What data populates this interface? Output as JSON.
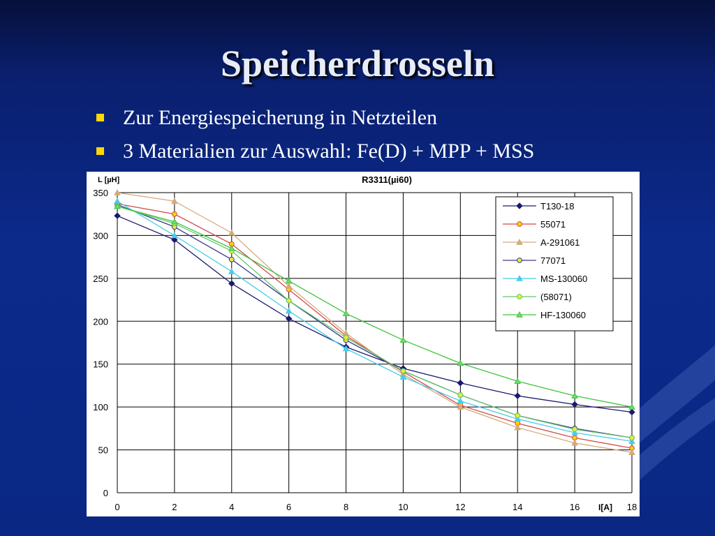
{
  "slide": {
    "title": "Speicherdrosseln",
    "bullets": [
      "Zur Energiespeicherung in Netzteilen",
      "3 Materialien zur Auswahl: Fe(D) + MPP + MSS"
    ]
  },
  "colors": {
    "background": "#0b2a8a",
    "bullet_marker": "#ffd800",
    "title_text": "#e8ecf7"
  },
  "chart_data": {
    "type": "line",
    "title": "R3311(µi60)",
    "xlabel": "I[A]",
    "ylabel": "L [µH]",
    "x": [
      0,
      2,
      4,
      6,
      8,
      10,
      12,
      14,
      16,
      18
    ],
    "xlim": [
      0,
      18
    ],
    "ylim": [
      0,
      350
    ],
    "xticks": [
      0,
      2,
      4,
      6,
      8,
      10,
      12,
      14,
      16,
      18
    ],
    "yticks": [
      0,
      50,
      100,
      150,
      200,
      250,
      300,
      350
    ],
    "grid": true,
    "legend_position": "top-right",
    "series": [
      {
        "name": "T130-18",
        "color": "#1a1a6e",
        "marker": "diamond",
        "fill": "#1a1a6e",
        "values": [
          323,
          295,
          244,
          203,
          170,
          145,
          128,
          113,
          103,
          94
        ]
      },
      {
        "name": "55071",
        "color": "#d04a4a",
        "marker": "circle",
        "fill": "#ffd200",
        "values": [
          337,
          325,
          290,
          237,
          183,
          141,
          102,
          81,
          64,
          52
        ]
      },
      {
        "name": "A-291061",
        "color": "#d4aa7a",
        "marker": "triangle",
        "fill": "#d4aa7a",
        "values": [
          350,
          340,
          303,
          241,
          186,
          138,
          100,
          76,
          58,
          47
        ]
      },
      {
        "name": "77071",
        "color": "#3a3a8c",
        "marker": "circle",
        "fill": "#e6ec3a",
        "values": [
          336,
          310,
          272,
          224,
          178,
          142,
          114,
          90,
          75,
          64
        ]
      },
      {
        "name": "MS-130060",
        "color": "#48cdea",
        "marker": "triangle",
        "fill": "#48cdea",
        "values": [
          340,
          300,
          258,
          212,
          168,
          135,
          107,
          86,
          70,
          60
        ]
      },
      {
        "name": "(58071)",
        "color": "#62c76a",
        "marker": "circle",
        "fill": "#e6ec3a",
        "values": [
          334,
          314,
          282,
          224,
          181,
          142,
          114,
          90,
          74,
          64
        ]
      },
      {
        "name": "HF-130060",
        "color": "#3ec43e",
        "marker": "triangle",
        "fill": "#6fdc6f",
        "values": [
          334,
          316,
          285,
          247,
          209,
          178,
          151,
          130,
          113,
          100
        ]
      }
    ]
  }
}
